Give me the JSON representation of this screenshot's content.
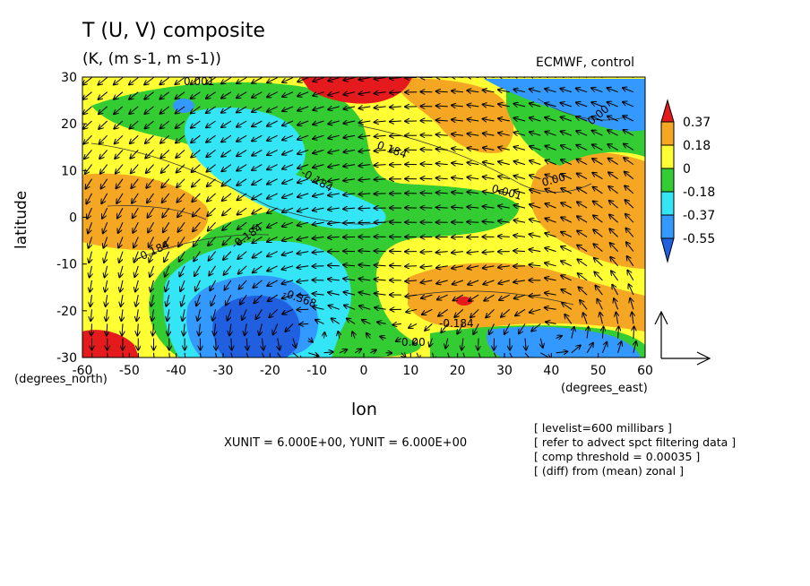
{
  "title": "T (U, V) composite",
  "subtitle": "(K, (m s-1, m s-1))",
  "source_label": "ECMWF, control",
  "chart_data": {
    "type": "heatmap",
    "overlay": "vector",
    "xlabel": "lon",
    "ylabel": "latitude",
    "x_unit_label": "(degrees_east)",
    "y_unit_label": "(degrees_north)",
    "xlim": [
      -60,
      60
    ],
    "ylim": [
      -30,
      30
    ],
    "x_ticks": [
      -60,
      -50,
      -40,
      -30,
      -20,
      -10,
      0,
      10,
      20,
      30,
      40,
      50,
      60
    ],
    "y_ticks": [
      -30,
      -20,
      -10,
      0,
      10,
      20,
      30
    ],
    "x_tick_labels": [
      "-60",
      "-50",
      "-40",
      "-30",
      "-20",
      "-10",
      "0",
      "10",
      "20",
      "30",
      "40",
      "50",
      "60"
    ],
    "y_tick_labels": [
      "-30",
      "-20",
      "-10",
      "0",
      "10",
      "20",
      "30"
    ],
    "colorbar": {
      "labels": [
        "0.37",
        "0.18",
        "0",
        "-0.18",
        "-0.37",
        "-0.55"
      ],
      "colors": [
        "#e41a1c",
        "#f5a623",
        "#ffff33",
        "#33cc33",
        "#33e5f5",
        "#3399ff",
        "#1f5fe0"
      ]
    },
    "contour_labels": [
      "0.001",
      "0.184",
      "0.001",
      "0.00",
      "-0.184",
      "-0.184",
      "-0.368",
      "-0.184",
      "0.00",
      "-0.184",
      "0.00"
    ],
    "scale_text": "XUNIT = 6.000E+00, YUNIT = 6.000E+00",
    "notes": [
      "[ levelist=600 millibars ]",
      "[ refer to advect spct filtering data ]",
      "[ comp threshold = 0.00035 ]",
      "[ (diff) from (mean) zonal ]"
    ],
    "field_features": [
      {
        "lon": -30,
        "lat": 16,
        "value": -0.37
      },
      {
        "lon": -25,
        "lat": 8,
        "value": -0.18
      },
      {
        "lon": -20,
        "lat": -25,
        "value": -0.55
      },
      {
        "lon": -32,
        "lat": -20,
        "value": -0.37
      },
      {
        "lon": 15,
        "lat": -15,
        "value": 0.18
      },
      {
        "lon": 22,
        "lat": -18,
        "value": 0.37
      },
      {
        "lon": 25,
        "lat": 29,
        "value": 0.37
      },
      {
        "lon": -57,
        "lat": -28,
        "value": 0.37
      },
      {
        "lon": 25,
        "lat": 20,
        "value": 0.18
      },
      {
        "lon": 50,
        "lat": 25,
        "value": -0.37
      },
      {
        "lon": 45,
        "lat": -26,
        "value": -0.37
      },
      {
        "lon": -50,
        "lat": 2,
        "value": 0.18
      },
      {
        "lon": 55,
        "lat": 0,
        "value": 0.18
      },
      {
        "lon": 0,
        "lat": 0,
        "value": -0.18
      }
    ]
  }
}
